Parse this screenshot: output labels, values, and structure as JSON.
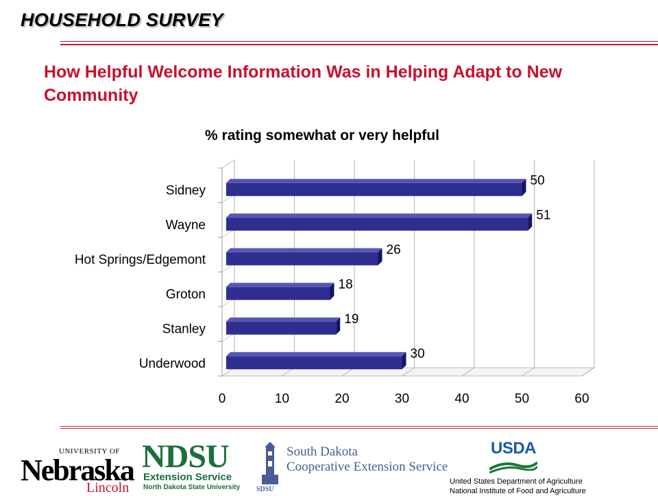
{
  "header": {
    "survey_label": "HOUSEHOLD SURVEY",
    "accent_color": "#c8102e"
  },
  "slide_title": "How Helpful Welcome Information Was in Helping Adapt to New Community",
  "chart_data": {
    "type": "bar",
    "orientation": "horizontal",
    "three_d": true,
    "title": "% rating somewhat or very helpful",
    "categories": [
      "Sidney",
      "Wayne",
      "Hot Springs/Edgemont",
      "Groton",
      "Stanley",
      "Underwood"
    ],
    "values": [
      50,
      51,
      26,
      18,
      19,
      30
    ],
    "xlim": [
      0,
      60
    ],
    "x_ticks": [
      "0",
      "10",
      "20",
      "30",
      "40",
      "50",
      "60"
    ],
    "grid": true,
    "legend": "none",
    "bar_color": "#2e2e91"
  },
  "logos": {
    "nebraska": {
      "univ": "UNIVERSITY OF",
      "name": "Nebraska",
      "city": "Lincoln"
    },
    "ndsu": {
      "name": "NDSU",
      "line1": "Extension Service",
      "line2": "North Dakota State University"
    },
    "sdsu": {
      "line1": "South Dakota",
      "line2": "Cooperative Extension Service",
      "abbr": "SDSU"
    },
    "usda": {
      "name": "USDA",
      "line1": "United States Department of Agriculture",
      "line2": "National Institute of Food and Agriculture"
    }
  }
}
